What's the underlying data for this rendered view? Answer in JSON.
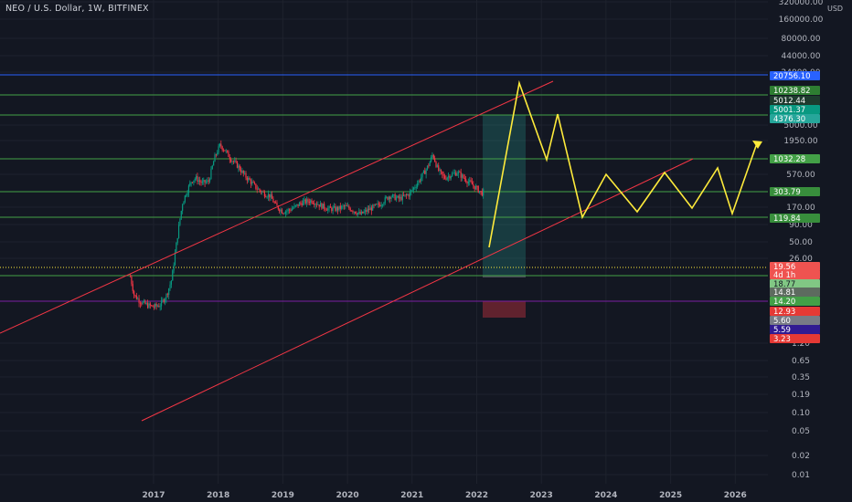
{
  "header": {
    "title": "NEO / U.S. Dollar, 1W, BITFINEX",
    "currency": "USD"
  },
  "chart_data": {
    "type": "line",
    "symbol": "NEO / U.S. Dollar",
    "interval": "1W",
    "exchange": "BITFINEX",
    "scale": "log",
    "y_ticks": [
      "320000.00",
      "160000.00",
      "80000.00",
      "44000.00",
      "24000.00",
      "5000.00",
      "1950.00",
      "570.00",
      "170.00",
      "90.00",
      "50.00",
      "26.00",
      "1.20",
      "0.65",
      "0.35",
      "0.19",
      "0.10",
      "0.05",
      "0.02",
      "0.01"
    ],
    "x_ticks": [
      "2017",
      "2018",
      "2019",
      "2020",
      "2021",
      "2022",
      "2023",
      "2024",
      "2025",
      "2026"
    ],
    "price_tags": [
      {
        "label": "20756.10",
        "color": "#2962ff",
        "text": "#ffffff"
      },
      {
        "label": "10238.82",
        "color": "#2e7d32",
        "text": "#ffffff"
      },
      {
        "label": "5012.44",
        "color": "#1e3b2e",
        "text": "#ffffff"
      },
      {
        "label": "5001.37",
        "color": "#089981",
        "text": "#ffffff"
      },
      {
        "label": "4376.30",
        "color": "#26a69a",
        "text": "#ffffff"
      },
      {
        "label": "1032.28",
        "color": "#43a047",
        "text": "#ffffff"
      },
      {
        "label": "303.79",
        "color": "#388e3c",
        "text": "#ffffff"
      },
      {
        "label": "119.84",
        "color": "#388e3c",
        "text": "#ffffff"
      },
      {
        "label": "19.56",
        "color": "#ef5350",
        "text": "#ffffff"
      },
      {
        "label": "4d 1h",
        "color": "#ef5350",
        "text": "#ffffff"
      },
      {
        "label": "18.77",
        "color": "#81c784",
        "text": "#131722"
      },
      {
        "label": "14.81",
        "color": "#5d6b5f",
        "text": "#ffffff"
      },
      {
        "label": "14.20",
        "color": "#43a047",
        "text": "#ffffff"
      },
      {
        "label": "12.93",
        "color": "#e53935",
        "text": "#ffffff"
      },
      {
        "label": "5.60",
        "color": "#787b86",
        "text": "#ffffff"
      },
      {
        "label": "5.59",
        "color": "#311b92",
        "text": "#ffffff"
      },
      {
        "label": "3.23",
        "color": "#e53935",
        "text": "#ffffff"
      }
    ],
    "horizontal_levels": [
      {
        "value": 20756.1,
        "color": "#2962ff"
      },
      {
        "value": 10238.82,
        "color": "#43a047"
      },
      {
        "value": 4376.3,
        "color": "#43a047"
      },
      {
        "value": 1032.28,
        "color": "#43a047"
      },
      {
        "value": 303.79,
        "color": "#43a047"
      },
      {
        "value": 119.84,
        "color": "#43a047"
      },
      {
        "value": 19.56,
        "color": "#ffeb3b",
        "dotted": true
      },
      {
        "value": 14.2,
        "color": "#43a047"
      },
      {
        "value": 5.59,
        "color": "#7b1fa2"
      }
    ],
    "projection_path_color": "#ffeb3b",
    "channel_color": "#f23645",
    "candle_up_color": "#089981",
    "candle_down_color": "#f23645"
  }
}
